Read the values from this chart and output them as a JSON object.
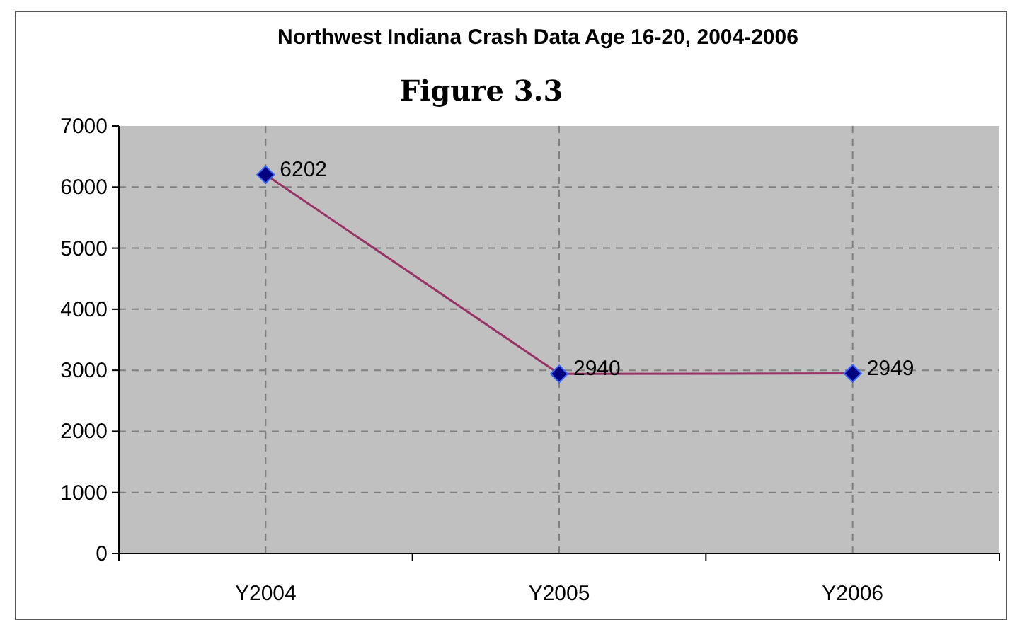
{
  "chart_data": {
    "type": "line",
    "title": "Northwest Indiana Crash Data Age 16-20, 2004-2006",
    "subtitle": "Figure 3.3",
    "categories": [
      "Y2004",
      "Y2005",
      "Y2006"
    ],
    "series": [
      {
        "color": "#993366",
        "values": [
          6202,
          2940,
          2949
        ]
      }
    ],
    "ylim": [
      0,
      7000
    ],
    "yticks": [
      0,
      1000,
      2000,
      3000,
      4000,
      5000,
      6000,
      7000
    ],
    "grid": true,
    "data_labels": true,
    "marker": "diamond",
    "line_style": "solid"
  }
}
